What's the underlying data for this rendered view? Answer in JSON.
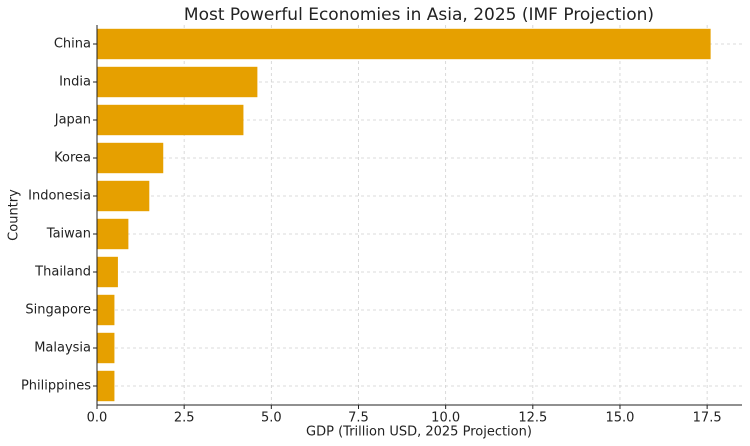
{
  "chart_data": {
    "type": "barh",
    "title": "Most Powerful Economies in Asia, 2025 (IMF Projection)",
    "x_label": "GDP (Trillion USD, 2025 Projection)",
    "y_label": "Country",
    "categories": [
      "China",
      "India",
      "Japan",
      "Korea",
      "Indonesia",
      "Taiwan",
      "Thailand",
      "Singapore",
      "Malaysia",
      "Philippines"
    ],
    "values": [
      17.6,
      4.6,
      4.2,
      1.9,
      1.5,
      0.9,
      0.6,
      0.5,
      0.5,
      0.5
    ],
    "color": "#e6a000",
    "xlim": [
      0,
      18.5
    ],
    "xticks": [
      {
        "value": 0,
        "label": "0.0"
      },
      2.5,
      {
        "value": 5,
        "label": "5.0"
      },
      7.5,
      {
        "value": 10,
        "label": "10.0"
      },
      12.5,
      {
        "value": 15,
        "label": "15.0"
      },
      17.5
    ],
    "grid": true
  }
}
